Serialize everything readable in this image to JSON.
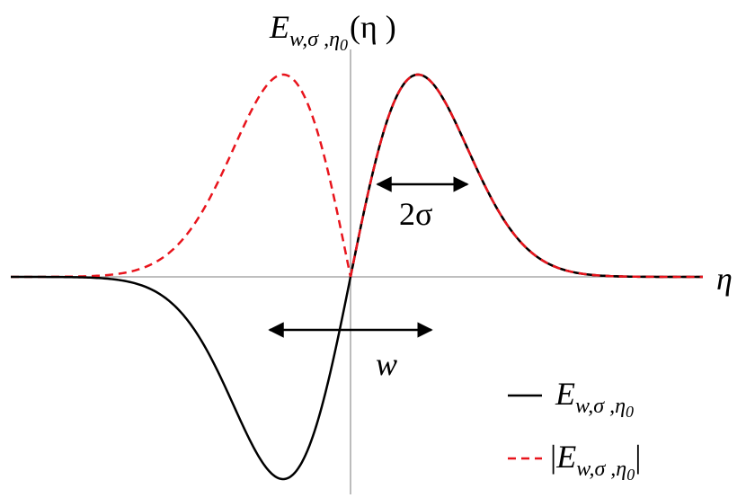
{
  "title": {
    "symbol": "E",
    "subscript": "w,σ ,η",
    "subsubscript": "0",
    "argument": "(η )"
  },
  "axis_label": "η",
  "annotations": {
    "width_sigma": "2σ",
    "width_w": "w"
  },
  "legend": [
    {
      "symbol": "E",
      "subscript": "w,σ ,η",
      "subsubscript": "0"
    },
    {
      "prefix": "|",
      "symbol": "E",
      "subscript": "w,σ ,η",
      "subsubscript": "0",
      "suffix": "|"
    }
  ]
}
